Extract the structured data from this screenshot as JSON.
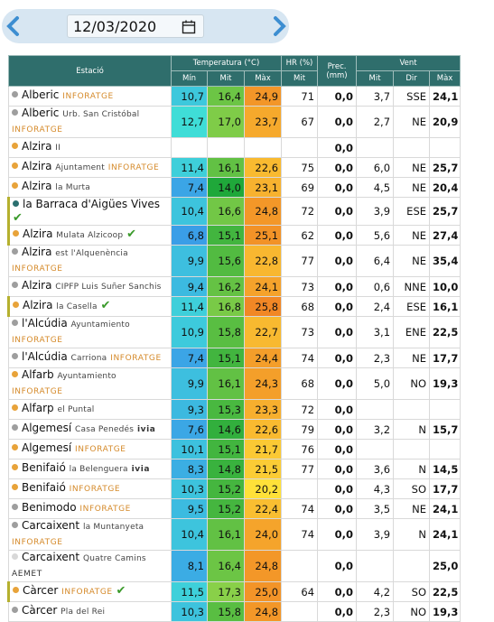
{
  "date": "12/03/2020",
  "table": {
    "header": {
      "station": "Estació",
      "temperature": "Temperatura (°C)",
      "humidity": "HR (%)",
      "precipitation": "Prec. (mm)",
      "wind": "Vent",
      "sub": [
        "Mín",
        "Mit",
        "Màx",
        "Mit",
        "Mit",
        "Dir",
        "Màx"
      ]
    },
    "rows": [
      {
        "name": "Alberic",
        "network": "INFORATGE",
        "dot": "#9e9e9e",
        "cells": [
          "10,7",
          "16,4",
          "24,9",
          "71",
          "0,0",
          "3,7",
          "SSE",
          "24,1"
        ]
      },
      {
        "name": "Alberic",
        "place": "Urb. San Cristóbal",
        "network": "INFORATGE",
        "dot": "#9e9e9e",
        "cells": [
          "12,7",
          "17,0",
          "23,7",
          "67",
          "0,0",
          "2,7",
          "NE",
          "20,9"
        ]
      },
      {
        "name": "Alzira",
        "place": "II",
        "dot": "#e8a33a",
        "cells": [
          null,
          null,
          null,
          null,
          "0,0",
          null,
          null,
          null
        ]
      },
      {
        "name": "Alzira",
        "place": "Ajuntament",
        "network": "INFORATGE",
        "dot": "#e8a33a",
        "cells": [
          "11,4",
          "16,1",
          "22,6",
          "75",
          "0,0",
          "6,0",
          "NE",
          "25,7"
        ]
      },
      {
        "name": "Alzira",
        "place": "la Murta",
        "dot": "#e8a33a",
        "cells": [
          "7,4",
          "14,0",
          "23,1",
          "69",
          "0,0",
          "4,5",
          "NE",
          "20,4"
        ]
      },
      {
        "name": "la Barraca d'Aigües Vives",
        "check": true,
        "dot": "#2b6f6f",
        "cells": [
          "10,4",
          "16,6",
          "24,8",
          "72",
          "0,0",
          "3,9",
          "ESE",
          "25,7"
        ]
      },
      {
        "name": "Alzira",
        "place": "Mulata Alzicoop",
        "check": true,
        "dot": "#e8a33a",
        "cells": [
          "6,8",
          "15,1",
          "25,1",
          "62",
          "0,0",
          "5,6",
          "NE",
          "27,4"
        ]
      },
      {
        "name": "Alzira",
        "place": "est l'Alquenència",
        "network": "INFORATGE",
        "dot": "#9e9e9e",
        "cells": [
          "9,9",
          "15,6",
          "22,8",
          "77",
          "0,0",
          "6,4",
          "NE",
          "35,4"
        ]
      },
      {
        "name": "Alzira",
        "place": "CIPFP Luis Suñer Sanchis",
        "dot": "#9e9e9e",
        "cells": [
          "9,4",
          "16,2",
          "24,1",
          "73",
          "0,0",
          "0,6",
          "NNE",
          "10,0"
        ]
      },
      {
        "name": "Alzira",
        "place": "la Casella",
        "check": true,
        "dot": "#e8a33a",
        "cells": [
          "11,4",
          "16,8",
          "25,8",
          "68",
          "0,0",
          "2,4",
          "ESE",
          "16,1"
        ]
      },
      {
        "name": "l'Alcúdia",
        "place": "Ayuntamiento",
        "network": "INFORATGE",
        "dot": "#9e9e9e",
        "cells": [
          "10,9",
          "15,8",
          "22,7",
          "73",
          "0,0",
          "3,1",
          "ENE",
          "22,5"
        ]
      },
      {
        "name": "l'Alcúdia",
        "place": "Carriona",
        "network": "INFORATGE",
        "dot": "#9e9e9e",
        "cells": [
          "7,4",
          "15,1",
          "24,4",
          "74",
          "0,0",
          "2,3",
          "NE",
          "17,7"
        ]
      },
      {
        "name": "Alfarb",
        "place": "Ayuntamiento",
        "network": "INFORATGE",
        "dot": "#e8a33a",
        "cells": [
          "9,9",
          "16,1",
          "24,3",
          "68",
          "0,0",
          "5,0",
          "NO",
          "19,3"
        ]
      },
      {
        "name": "Alfarp",
        "place": "el Puntal",
        "dot": "#e8a33a",
        "cells": [
          "9,3",
          "15,3",
          "23,3",
          "72",
          "0,0",
          null,
          null,
          null
        ]
      },
      {
        "name": "Algemesí",
        "place": "Casa Penedés",
        "network": "ivia",
        "dot": "#9e9e9e",
        "cells": [
          "7,6",
          "14,6",
          "22,6",
          "79",
          "0,0",
          "3,2",
          "N",
          "15,7"
        ]
      },
      {
        "name": "Algemesí",
        "network": "INFORATGE",
        "dot": "#e8a33a",
        "cells": [
          "10,1",
          "15,1",
          "21,7",
          "76",
          "0,0",
          null,
          null,
          null
        ]
      },
      {
        "name": "Benifaió",
        "place": "la Belenguera",
        "network": "ivia",
        "dot": "#e8a33a",
        "cells": [
          "8,3",
          "14,8",
          "21,5",
          "77",
          "0,0",
          "3,6",
          "N",
          "14,5"
        ]
      },
      {
        "name": "Benifaió",
        "network": "INFORATGE",
        "dot": "#e8a33a",
        "cells": [
          "10,3",
          "15,2",
          "20,2",
          null,
          "0,0",
          "4,3",
          "SO",
          "17,7"
        ]
      },
      {
        "name": "Benimodo",
        "network": "INFORATGE",
        "dot": "#9e9e9e",
        "cells": [
          "9,5",
          "15,2",
          "22,4",
          "74",
          "0,0",
          "3,5",
          "NE",
          "24,1"
        ]
      },
      {
        "name": "Carcaixent",
        "place": "la Muntanyeta",
        "network": "INFORATGE",
        "dot": "#9e9e9e",
        "cells": [
          "10,4",
          "16,1",
          "24,0",
          "74",
          "0,0",
          "3,9",
          "N",
          "24,1"
        ]
      },
      {
        "name": "Carcaixent",
        "place": "Quatre Camins",
        "network": "AEMET",
        "dot": "#d8d8d8",
        "cells": [
          "8,1",
          "16,4",
          "24,8",
          null,
          "0,0",
          null,
          null,
          "25,0"
        ]
      },
      {
        "name": "Càrcer",
        "network": "INFORATGE",
        "check": true,
        "dot": "#e8a33a",
        "cells": [
          "11,5",
          "17,3",
          "25,0",
          "64",
          "0,0",
          "4,2",
          "SO",
          "22,5"
        ]
      },
      {
        "name": "Càrcer",
        "place": "Pla del Rei",
        "dot": "#9e9e9e",
        "cells": [
          "10,3",
          "15,8",
          "24,8",
          null,
          "0,0",
          "2,3",
          "NO",
          "19,3"
        ]
      }
    ]
  }
}
